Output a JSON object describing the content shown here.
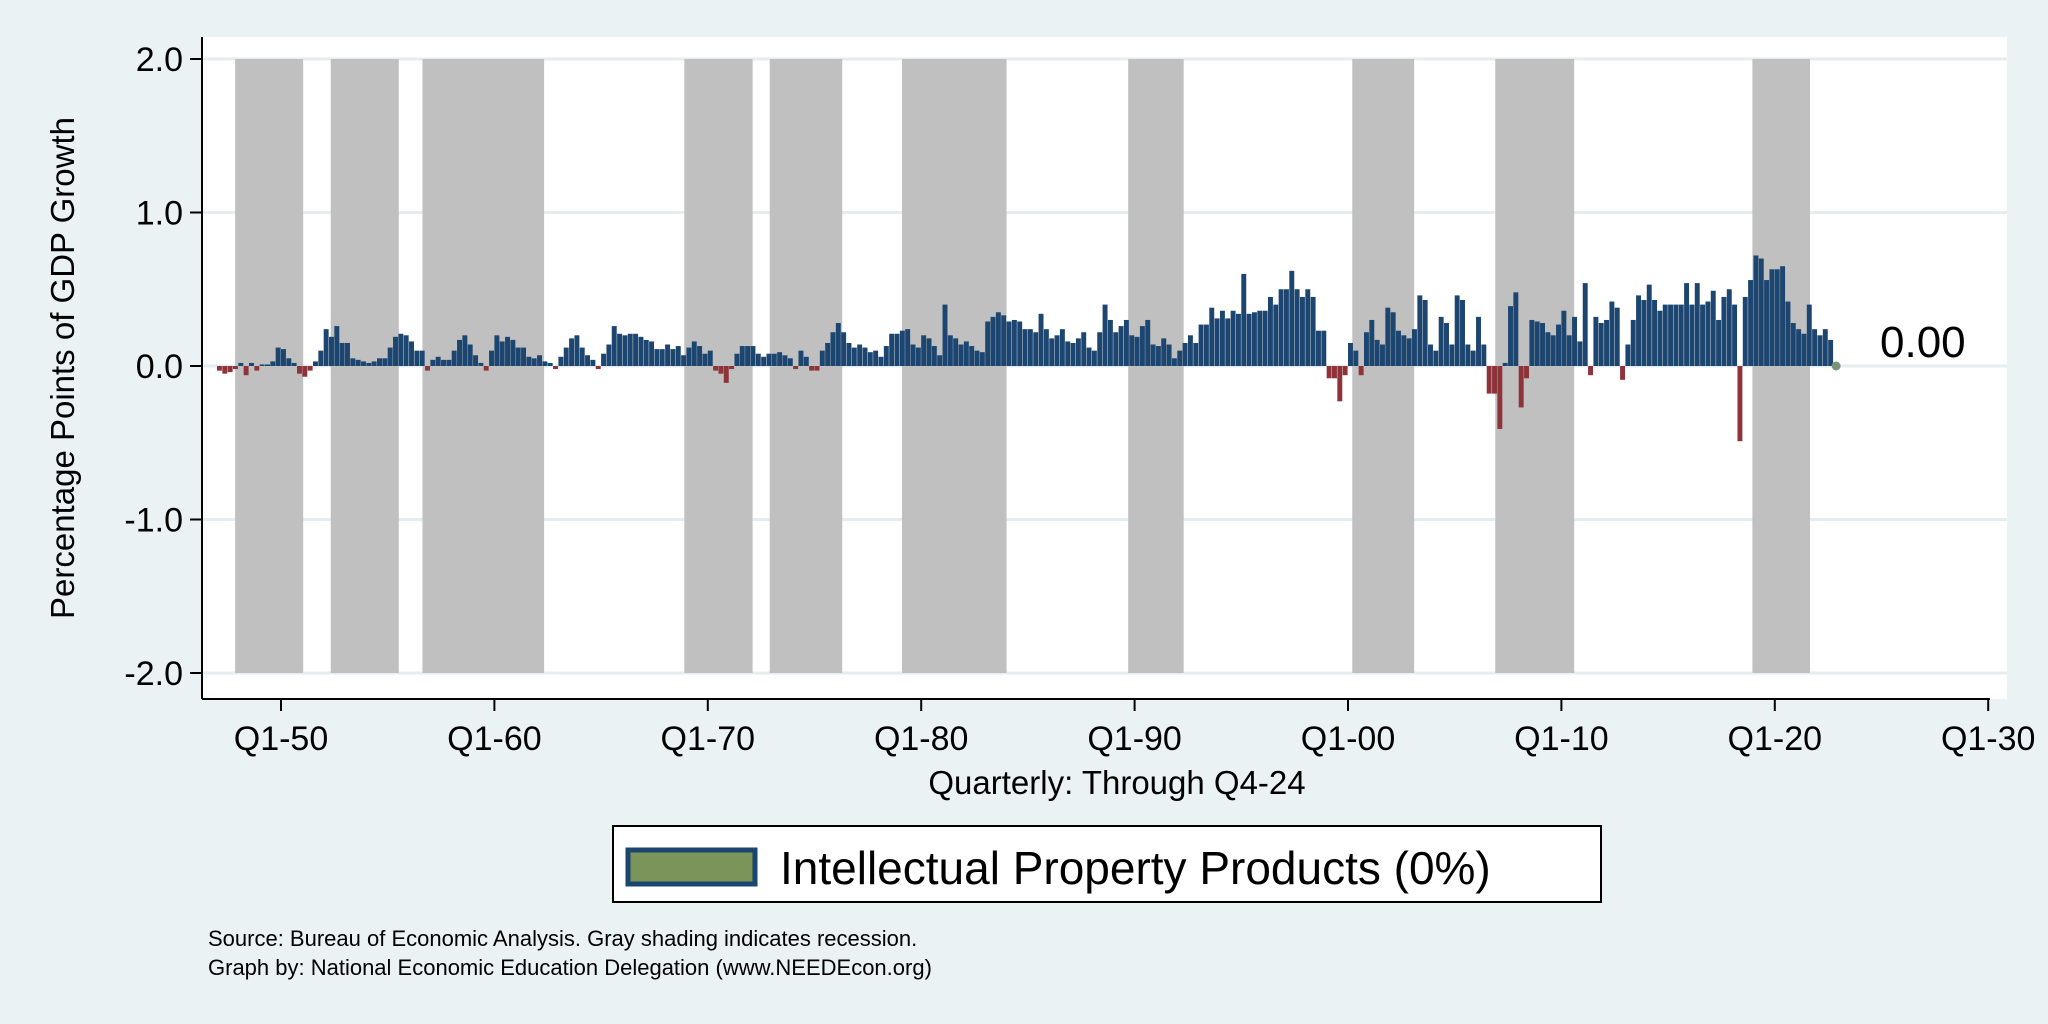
{
  "chart_data": {
    "type": "bar",
    "title": "",
    "ylabel": "Percentage Points of GDP Growth",
    "xlabel": "Quarterly: Through Q4-24",
    "ylim": [
      -2.0,
      2.0
    ],
    "xlim_years": [
      1946.5,
      2031
    ],
    "yticks": [
      {
        "value": 2.0,
        "label": "2.0"
      },
      {
        "value": 1.0,
        "label": "1.0"
      },
      {
        "value": 0.0,
        "label": "0.0"
      },
      {
        "value": -1.0,
        "label": "-1.0"
      },
      {
        "value": -2.0,
        "label": "-2.0"
      }
    ],
    "xticks": [
      {
        "year": 1950,
        "label": "Q1-50"
      },
      {
        "year": 1960,
        "label": "Q1-60"
      },
      {
        "year": 1970,
        "label": "Q1-70"
      },
      {
        "year": 1980,
        "label": "Q1-80"
      },
      {
        "year": 1990,
        "label": "Q1-90"
      },
      {
        "year": 2000,
        "label": "Q1-00"
      },
      {
        "year": 2010,
        "label": "Q1-10"
      },
      {
        "year": 2020,
        "label": "Q1-20"
      },
      {
        "year": 2030,
        "label": "Q1-30"
      }
    ],
    "grid": true,
    "start_quarter": "Q1-47",
    "end_quarter": "Q4-24",
    "colors": {
      "positive": "#1c4570",
      "negative": "#8e333a",
      "recession": "#c0c0c0",
      "last_point": "#7a9479",
      "legend_fill": "#7a9459",
      "legend_border": "#1c4570"
    },
    "recessions": [
      [
        1947.85,
        1951.04
      ],
      [
        1952.33,
        1955.52
      ],
      [
        1956.63,
        1962.33
      ],
      [
        1968.9,
        1972.1
      ],
      [
        1972.9,
        1976.3
      ],
      [
        1979.1,
        1984.0
      ],
      [
        1989.7,
        1992.3
      ],
      [
        2000.2,
        2003.1
      ],
      [
        2006.9,
        2010.6
      ],
      [
        2018.95,
        2021.65
      ]
    ],
    "values": [
      -0.03,
      -0.05,
      -0.04,
      -0.02,
      0.02,
      -0.06,
      0.02,
      -0.03,
      0.01,
      0.01,
      0.03,
      0.12,
      0.11,
      0.05,
      0.02,
      -0.05,
      -0.07,
      -0.03,
      0.03,
      0.1,
      0.24,
      0.19,
      0.26,
      0.15,
      0.15,
      0.05,
      0.04,
      0.03,
      0.02,
      0.03,
      0.05,
      0.05,
      0.12,
      0.19,
      0.21,
      0.2,
      0.16,
      0.1,
      0.1,
      -0.03,
      0.04,
      0.06,
      0.04,
      0.04,
      0.1,
      0.17,
      0.2,
      0.14,
      0.07,
      0.02,
      -0.03,
      0.1,
      0.2,
      0.16,
      0.19,
      0.17,
      0.12,
      0.12,
      0.06,
      0.05,
      0.07,
      0.03,
      0.02,
      -0.02,
      0.06,
      0.12,
      0.18,
      0.2,
      0.12,
      0.07,
      0.04,
      -0.02,
      0.08,
      0.14,
      0.26,
      0.21,
      0.2,
      0.21,
      0.21,
      0.19,
      0.17,
      0.16,
      0.11,
      0.11,
      0.14,
      0.11,
      0.13,
      0.07,
      0.12,
      0.16,
      0.13,
      0.08,
      0.1,
      -0.03,
      -0.05,
      -0.11,
      -0.02,
      0.08,
      0.13,
      0.13,
      0.13,
      0.08,
      0.06,
      0.08,
      0.08,
      0.09,
      0.07,
      0.05,
      -0.02,
      0.1,
      0.06,
      -0.03,
      -0.03,
      0.1,
      0.15,
      0.22,
      0.28,
      0.22,
      0.15,
      0.12,
      0.14,
      0.12,
      0.09,
      0.1,
      0.06,
      0.13,
      0.21,
      0.21,
      0.23,
      0.24,
      0.14,
      0.12,
      0.2,
      0.18,
      0.13,
      0.07,
      0.4,
      0.2,
      0.18,
      0.14,
      0.16,
      0.13,
      0.1,
      0.09,
      0.29,
      0.32,
      0.35,
      0.33,
      0.29,
      0.3,
      0.29,
      0.24,
      0.24,
      0.22,
      0.34,
      0.24,
      0.18,
      0.2,
      0.24,
      0.16,
      0.15,
      0.18,
      0.22,
      0.12,
      0.1,
      0.22,
      0.4,
      0.3,
      0.22,
      0.26,
      0.3,
      0.2,
      0.19,
      0.26,
      0.3,
      0.14,
      0.13,
      0.18,
      0.14,
      0.05,
      0.1,
      0.15,
      0.2,
      0.15,
      0.27,
      0.27,
      0.38,
      0.31,
      0.36,
      0.31,
      0.36,
      0.34,
      0.6,
      0.34,
      0.35,
      0.36,
      0.36,
      0.45,
      0.4,
      0.5,
      0.5,
      0.62,
      0.5,
      0.45,
      0.5,
      0.45,
      0.23,
      0.23,
      -0.08,
      -0.08,
      -0.23,
      -0.06,
      0.15,
      0.1,
      -0.06,
      0.22,
      0.3,
      0.17,
      0.14,
      0.38,
      0.35,
      0.23,
      0.2,
      0.18,
      0.24,
      0.46,
      0.43,
      0.14,
      0.1,
      0.32,
      0.28,
      0.14,
      0.46,
      0.43,
      0.14,
      0.1,
      0.32,
      0.14,
      -0.18,
      -0.18,
      -0.41,
      0.02,
      0.39,
      0.48,
      -0.27,
      -0.08,
      0.3,
      0.29,
      0.28,
      0.22,
      0.2,
      0.27,
      0.36,
      0.2,
      0.32,
      0.16,
      0.54,
      -0.06,
      0.32,
      0.28,
      0.3,
      0.42,
      0.38,
      -0.09,
      0.14,
      0.3,
      0.46,
      0.43,
      0.53,
      0.43,
      0.36,
      0.4,
      0.4,
      0.4,
      0.4,
      0.54,
      0.4,
      0.54,
      0.4,
      0.42,
      0.49,
      0.3,
      0.45,
      0.5,
      0.4,
      -0.49,
      0.45,
      0.56,
      0.72,
      0.7,
      0.56,
      0.63,
      0.63,
      0.65,
      0.42,
      0.28,
      0.24,
      0.21,
      0.4,
      0.24,
      0.2,
      0.24,
      0.17,
      0.0
    ],
    "last_value_label": "0.00",
    "legend": {
      "position": "bottom-center",
      "entries": [
        {
          "label": "Intellectual Property Products (0%)"
        }
      ]
    },
    "annotations": [
      "Source: Bureau of Economic Analysis. Gray shading indicates recession.",
      "Graph by: National Economic Education Delegation (www.NEEDEcon.org)"
    ]
  }
}
